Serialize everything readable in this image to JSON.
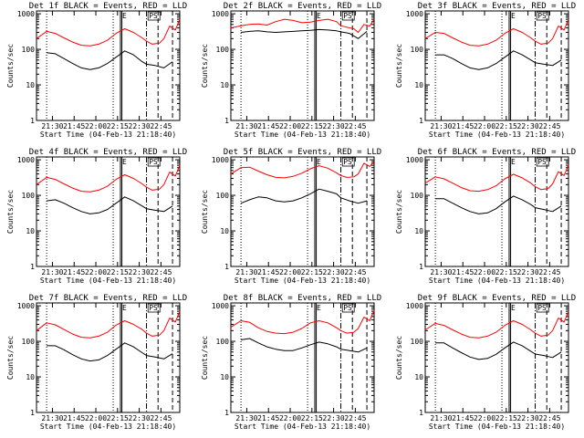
{
  "window": {
    "background": "#ffffff"
  },
  "colors": {
    "events": "#000000",
    "lld": "#ff0000"
  },
  "common": {
    "ylabel": "Counts/sec",
    "xlabel": "Start Time (04-Feb-13 21:18:40)",
    "xtick_labels": [
      "21:30",
      "21:45",
      "22:00",
      "22:15",
      "22:30",
      "22:45"
    ],
    "ytick_labels": [
      "1",
      "10",
      "100",
      "1000"
    ],
    "marker_e": "E",
    "marker_ps": "PS"
  },
  "chart_data": [
    {
      "type": "line",
      "title": "Det 1f BLACK = Events, RED = LLD",
      "x_range_minutes": [
        0,
        99
      ],
      "ylim": [
        1,
        1200
      ],
      "yscale": "log",
      "series": [
        {
          "name": "Events",
          "x": [
            7,
            13,
            19,
            25,
            31,
            37,
            43,
            49,
            55,
            61,
            67,
            73,
            76,
            82,
            88,
            94
          ],
          "values": [
            80,
            75,
            55,
            40,
            30,
            27,
            30,
            40,
            60,
            90,
            70,
            45,
            38,
            35,
            30,
            45
          ]
        },
        {
          "name": "LLD",
          "x": [
            0,
            7,
            13,
            19,
            25,
            31,
            37,
            43,
            49,
            55,
            61,
            67,
            73,
            76,
            80,
            85,
            88,
            92,
            96,
            99
          ],
          "values": [
            200,
            320,
            280,
            210,
            160,
            130,
            125,
            140,
            180,
            280,
            380,
            300,
            210,
            170,
            140,
            150,
            200,
            450,
            350,
            700
          ]
        }
      ],
      "vlines": {
        "dotted": [
          7,
          53
        ],
        "solid": [
          58,
          59
        ],
        "dashdot": [
          76
        ],
        "dashed": [
          84,
          94
        ]
      }
    },
    {
      "type": "line",
      "title": "Det 2f BLACK = Events, RED = LLD",
      "x_range_minutes": [
        0,
        99
      ],
      "ylim": [
        1,
        1200
      ],
      "yscale": "log",
      "series": [
        {
          "name": "Events",
          "x": [
            7,
            13,
            19,
            25,
            31,
            37,
            43,
            49,
            55,
            61,
            67,
            73,
            76,
            82,
            88,
            94
          ],
          "values": [
            300,
            320,
            330,
            310,
            300,
            310,
            320,
            330,
            340,
            360,
            350,
            330,
            310,
            280,
            200,
            320
          ]
        },
        {
          "name": "LLD",
          "x": [
            0,
            7,
            13,
            19,
            25,
            31,
            37,
            43,
            49,
            55,
            61,
            67,
            73,
            76,
            80,
            85,
            88,
            92,
            96,
            99
          ],
          "values": [
            400,
            460,
            500,
            520,
            480,
            600,
            700,
            650,
            560,
            580,
            650,
            700,
            600,
            460,
            420,
            380,
            300,
            500,
            450,
            700
          ]
        }
      ],
      "vlines": {
        "dotted": [
          7,
          53
        ],
        "solid": [
          58,
          59
        ],
        "dashdot": [
          76
        ],
        "dashed": [
          84,
          94
        ]
      }
    },
    {
      "type": "line",
      "title": "Det 3f BLACK = Events, RED = LLD",
      "x_range_minutes": [
        0,
        99
      ],
      "ylim": [
        1,
        1200
      ],
      "yscale": "log",
      "series": [
        {
          "name": "Events",
          "x": [
            7,
            13,
            19,
            25,
            31,
            37,
            43,
            49,
            55,
            61,
            67,
            73,
            76,
            82,
            88,
            94
          ],
          "values": [
            70,
            70,
            55,
            40,
            30,
            27,
            30,
            40,
            60,
            90,
            70,
            50,
            42,
            38,
            35,
            50
          ]
        },
        {
          "name": "LLD",
          "x": [
            0,
            7,
            13,
            19,
            25,
            31,
            37,
            43,
            49,
            55,
            61,
            67,
            73,
            76,
            80,
            85,
            88,
            92,
            96,
            99
          ],
          "values": [
            200,
            300,
            280,
            210,
            160,
            130,
            125,
            140,
            180,
            280,
            380,
            300,
            210,
            170,
            140,
            150,
            200,
            450,
            350,
            700
          ]
        }
      ],
      "vlines": {
        "dotted": [
          7,
          53
        ],
        "solid": [
          58,
          59
        ],
        "dashdot": [
          76
        ],
        "dashed": [
          84,
          94
        ]
      }
    },
    {
      "type": "line",
      "title": "Det 4f BLACK = Events, RED = LLD",
      "x_range_minutes": [
        0,
        99
      ],
      "ylim": [
        1,
        1200
      ],
      "yscale": "log",
      "series": [
        {
          "name": "Events",
          "x": [
            7,
            13,
            19,
            25,
            31,
            37,
            43,
            49,
            55,
            61,
            67,
            73,
            76,
            82,
            88,
            94
          ],
          "values": [
            70,
            75,
            60,
            45,
            35,
            30,
            32,
            40,
            60,
            90,
            70,
            50,
            42,
            38,
            35,
            50
          ]
        },
        {
          "name": "LLD",
          "x": [
            0,
            7,
            13,
            19,
            25,
            31,
            37,
            43,
            49,
            55,
            61,
            67,
            73,
            76,
            80,
            85,
            88,
            92,
            96,
            99
          ],
          "values": [
            200,
            320,
            280,
            210,
            160,
            130,
            125,
            140,
            180,
            280,
            380,
            300,
            210,
            170,
            140,
            150,
            200,
            450,
            350,
            700
          ]
        }
      ],
      "vlines": {
        "dotted": [
          7,
          53
        ],
        "solid": [
          58,
          59
        ],
        "dashdot": [
          76
        ],
        "dashed": [
          84,
          94
        ]
      }
    },
    {
      "type": "line",
      "title": "Det 5f BLACK = Events, RED = LLD",
      "x_range_minutes": [
        0,
        99
      ],
      "ylim": [
        1,
        1200
      ],
      "yscale": "log",
      "series": [
        {
          "name": "Events",
          "x": [
            7,
            13,
            19,
            25,
            31,
            37,
            43,
            49,
            55,
            61,
            67,
            73,
            76,
            82,
            88,
            94
          ],
          "values": [
            60,
            75,
            90,
            85,
            70,
            65,
            70,
            85,
            110,
            150,
            130,
            110,
            85,
            70,
            60,
            70
          ]
        },
        {
          "name": "LLD",
          "x": [
            0,
            7,
            13,
            19,
            25,
            31,
            37,
            43,
            49,
            55,
            61,
            67,
            73,
            76,
            80,
            85,
            88,
            92,
            96,
            99
          ],
          "values": [
            400,
            600,
            620,
            480,
            380,
            320,
            310,
            340,
            420,
            560,
            680,
            580,
            430,
            360,
            320,
            330,
            400,
            800,
            650,
            900
          ]
        }
      ],
      "vlines": {
        "dotted": [
          7,
          53
        ],
        "solid": [
          58,
          59
        ],
        "dashdot": [
          76
        ],
        "dashed": [
          84,
          94
        ]
      }
    },
    {
      "type": "line",
      "title": "Det 6f BLACK = Events, RED = LLD",
      "x_range_minutes": [
        0,
        99
      ],
      "ylim": [
        1,
        1200
      ],
      "yscale": "log",
      "series": [
        {
          "name": "Events",
          "x": [
            7,
            13,
            19,
            25,
            31,
            37,
            43,
            49,
            55,
            61,
            67,
            73,
            76,
            82,
            88,
            94
          ],
          "values": [
            80,
            80,
            60,
            45,
            35,
            30,
            32,
            42,
            65,
            95,
            75,
            55,
            45,
            40,
            35,
            50
          ]
        },
        {
          "name": "LLD",
          "x": [
            0,
            7,
            13,
            19,
            25,
            31,
            37,
            43,
            49,
            55,
            61,
            67,
            73,
            76,
            80,
            85,
            88,
            92,
            96,
            99
          ],
          "values": [
            220,
            330,
            290,
            220,
            165,
            135,
            130,
            145,
            185,
            290,
            390,
            310,
            220,
            175,
            145,
            155,
            210,
            460,
            360,
            720
          ]
        }
      ],
      "vlines": {
        "dotted": [
          7,
          53
        ],
        "solid": [
          58,
          59
        ],
        "dashdot": [
          76
        ],
        "dashed": [
          84,
          94
        ]
      }
    },
    {
      "type": "line",
      "title": "Det 7f BLACK = Events, RED = LLD",
      "x_range_minutes": [
        0,
        99
      ],
      "ylim": [
        1,
        1200
      ],
      "yscale": "log",
      "series": [
        {
          "name": "Events",
          "x": [
            7,
            13,
            19,
            25,
            31,
            37,
            43,
            49,
            55,
            61,
            67,
            73,
            76,
            82,
            88,
            94
          ],
          "values": [
            75,
            75,
            58,
            42,
            32,
            28,
            30,
            40,
            60,
            90,
            70,
            48,
            40,
            36,
            32,
            45
          ]
        },
        {
          "name": "LLD",
          "x": [
            0,
            7,
            13,
            19,
            25,
            31,
            37,
            43,
            49,
            55,
            61,
            67,
            73,
            76,
            80,
            85,
            88,
            92,
            96,
            99
          ],
          "values": [
            200,
            330,
            290,
            215,
            160,
            130,
            125,
            140,
            180,
            285,
            380,
            300,
            215,
            170,
            140,
            150,
            200,
            450,
            350,
            700
          ]
        }
      ],
      "vlines": {
        "dotted": [
          7,
          53
        ],
        "solid": [
          58,
          59
        ],
        "dashdot": [
          76
        ],
        "dashed": [
          84,
          94
        ]
      }
    },
    {
      "type": "line",
      "title": "Det 8f BLACK = Events, RED = LLD",
      "x_range_minutes": [
        0,
        99
      ],
      "ylim": [
        1,
        1200
      ],
      "yscale": "log",
      "series": [
        {
          "name": "Events",
          "x": [
            7,
            13,
            19,
            25,
            31,
            37,
            43,
            49,
            55,
            61,
            67,
            73,
            76,
            82,
            88,
            94
          ],
          "values": [
            110,
            120,
            90,
            70,
            60,
            55,
            55,
            65,
            80,
            95,
            85,
            70,
            60,
            55,
            50,
            65
          ]
        },
        {
          "name": "LLD",
          "x": [
            0,
            7,
            13,
            19,
            25,
            31,
            37,
            43,
            49,
            55,
            61,
            67,
            73,
            76,
            80,
            85,
            88,
            92,
            96,
            99
          ],
          "values": [
            250,
            380,
            340,
            240,
            190,
            170,
            165,
            180,
            230,
            330,
            380,
            330,
            240,
            200,
            170,
            180,
            230,
            480,
            380,
            750
          ]
        }
      ],
      "vlines": {
        "dotted": [
          7,
          53
        ],
        "solid": [
          58,
          59
        ],
        "dashdot": [
          76
        ],
        "dashed": [
          84,
          94
        ]
      }
    },
    {
      "type": "line",
      "title": "Det 9f BLACK = Events, RED = LLD",
      "x_range_minutes": [
        0,
        99
      ],
      "ylim": [
        1,
        1200
      ],
      "yscale": "log",
      "series": [
        {
          "name": "Events",
          "x": [
            7,
            13,
            19,
            25,
            31,
            37,
            43,
            49,
            55,
            61,
            67,
            73,
            76,
            82,
            88,
            94
          ],
          "values": [
            90,
            90,
            65,
            48,
            36,
            31,
            33,
            43,
            65,
            95,
            75,
            52,
            44,
            40,
            35,
            50
          ]
        },
        {
          "name": "LLD",
          "x": [
            0,
            7,
            13,
            19,
            25,
            31,
            37,
            43,
            49,
            55,
            61,
            67,
            73,
            76,
            80,
            85,
            88,
            92,
            96,
            99
          ],
          "values": [
            210,
            320,
            280,
            210,
            160,
            130,
            125,
            140,
            180,
            280,
            380,
            300,
            210,
            170,
            140,
            150,
            200,
            450,
            350,
            700
          ]
        }
      ],
      "vlines": {
        "dotted": [
          7,
          53
        ],
        "solid": [
          58,
          59
        ],
        "dashdot": [
          76
        ],
        "dashed": [
          84,
          94
        ]
      }
    }
  ]
}
